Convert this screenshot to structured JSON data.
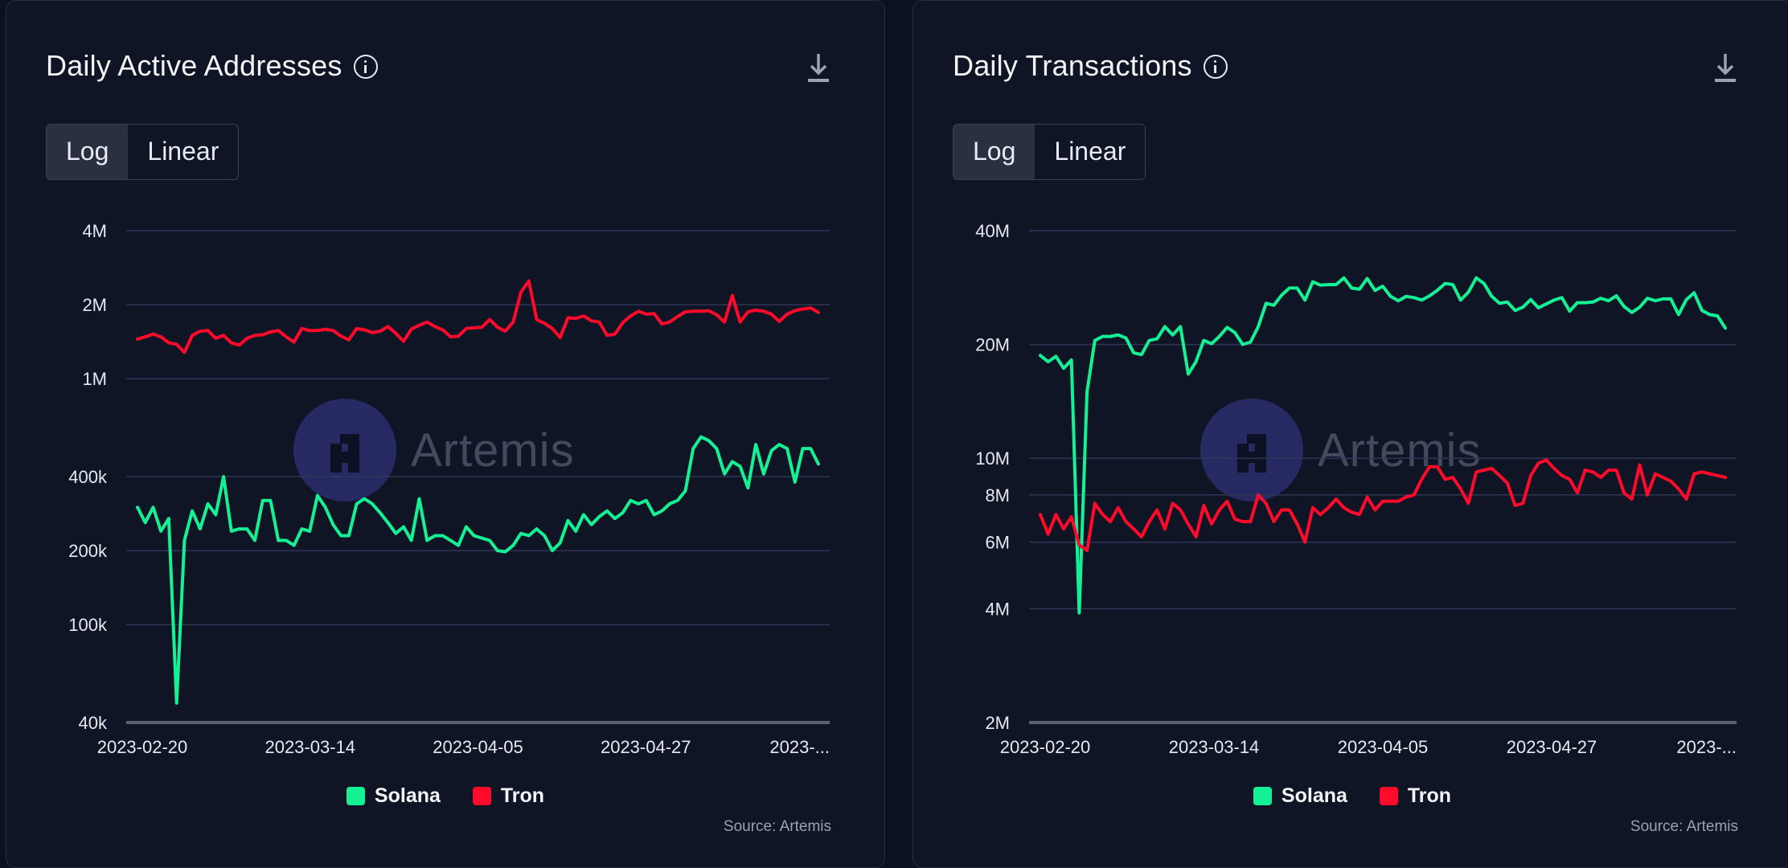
{
  "colors": {
    "solana": "#14f195",
    "tron": "#ff0a2a",
    "grid": "#2e3656",
    "baseline": "#5a6070"
  },
  "watermark": "Artemis",
  "chart_data": [
    {
      "type": "line",
      "title": "Daily Active Addresses",
      "yscale": "log",
      "toggle": [
        "Log",
        "Linear"
      ],
      "active_toggle": "Log",
      "ylim": [
        40000,
        4000000
      ],
      "y_ticks": [
        {
          "v": 4000000,
          "label": "4M"
        },
        {
          "v": 2000000,
          "label": "2M"
        },
        {
          "v": 1000000,
          "label": "1M"
        },
        {
          "v": 400000,
          "label": "400k"
        },
        {
          "v": 200000,
          "label": "200k"
        },
        {
          "v": 100000,
          "label": "100k"
        },
        {
          "v": 40000,
          "label": "40k"
        }
      ],
      "x_ticks": [
        "2023-02-20",
        "2023-03-14",
        "2023-04-05",
        "2023-04-27",
        "2023-..."
      ],
      "x_start": "2023-02-20",
      "legend": "bottom-center",
      "source": "Source: Artemis",
      "series": [
        {
          "name": "Solana",
          "values": [
            300000,
            260000,
            300000,
            240000,
            270000,
            48000,
            220000,
            290000,
            245000,
            310000,
            280000,
            400000,
            240000,
            245000,
            245000,
            220000,
            320000,
            320000,
            220000,
            220000,
            210000,
            245000,
            240000,
            335000,
            300000,
            255000,
            230000,
            230000,
            310000,
            325000,
            310000,
            285000,
            260000,
            235000,
            250000,
            220000,
            325000,
            220000,
            230000,
            230000,
            220000,
            210000,
            250000,
            230000,
            225000,
            220000,
            200000,
            198000,
            210000,
            235000,
            230000,
            245000,
            230000,
            200000,
            215000,
            265000,
            240000,
            280000,
            255000,
            275000,
            290000,
            270000,
            285000,
            320000,
            310000,
            320000,
            280000,
            290000,
            310000,
            320000,
            350000,
            520000,
            580000,
            560000,
            520000,
            410000,
            460000,
            440000,
            360000,
            540000,
            410000,
            510000,
            540000,
            520000,
            380000,
            520000,
            520000,
            450000
          ]
        },
        {
          "name": "Tron",
          "values": [
            1450000,
            1480000,
            1520000,
            1480000,
            1400000,
            1380000,
            1280000,
            1500000,
            1560000,
            1570000,
            1460000,
            1500000,
            1400000,
            1370000,
            1460000,
            1500000,
            1510000,
            1550000,
            1570000,
            1480000,
            1410000,
            1600000,
            1570000,
            1570000,
            1590000,
            1570000,
            1490000,
            1440000,
            1600000,
            1580000,
            1540000,
            1560000,
            1630000,
            1530000,
            1420000,
            1590000,
            1650000,
            1700000,
            1630000,
            1580000,
            1480000,
            1490000,
            1600000,
            1610000,
            1620000,
            1740000,
            1620000,
            1560000,
            1700000,
            2250000,
            2500000,
            1740000,
            1680000,
            1600000,
            1470000,
            1770000,
            1760000,
            1800000,
            1720000,
            1700000,
            1500000,
            1520000,
            1690000,
            1800000,
            1880000,
            1830000,
            1840000,
            1670000,
            1700000,
            1790000,
            1870000,
            1880000,
            1880000,
            1890000,
            1820000,
            1700000,
            2180000,
            1700000,
            1870000,
            1900000,
            1880000,
            1830000,
            1710000,
            1830000,
            1890000,
            1920000,
            1940000,
            1860000
          ]
        }
      ]
    },
    {
      "type": "line",
      "title": "Daily Transactions",
      "yscale": "log",
      "toggle": [
        "Log",
        "Linear"
      ],
      "active_toggle": "Log",
      "ylim": [
        2000000,
        40000000
      ],
      "y_ticks": [
        {
          "v": 40000000,
          "label": "40M"
        },
        {
          "v": 20000000,
          "label": "20M"
        },
        {
          "v": 10000000,
          "label": "10M"
        },
        {
          "v": 8000000,
          "label": "8M"
        },
        {
          "v": 6000000,
          "label": "6M"
        },
        {
          "v": 4000000,
          "label": "4M"
        },
        {
          "v": 2000000,
          "label": "2M"
        }
      ],
      "x_ticks": [
        "2023-02-20",
        "2023-03-14",
        "2023-04-05",
        "2023-04-27",
        "2023-..."
      ],
      "x_start": "2023-02-20",
      "legend": "bottom-center",
      "source": "Source: Artemis",
      "series": [
        {
          "name": "Solana",
          "values": [
            18700000,
            18000000,
            18600000,
            17300000,
            18200000,
            3900000,
            15000000,
            20500000,
            21000000,
            21000000,
            21200000,
            20800000,
            19000000,
            18800000,
            20500000,
            20700000,
            22300000,
            21200000,
            22300000,
            16700000,
            18000000,
            20500000,
            20100000,
            21000000,
            22200000,
            21500000,
            20000000,
            20300000,
            22300000,
            25700000,
            25400000,
            27000000,
            28200000,
            28200000,
            26200000,
            29300000,
            28700000,
            28800000,
            28800000,
            30000000,
            28200000,
            28000000,
            29900000,
            27800000,
            28500000,
            26800000,
            26100000,
            26800000,
            26600000,
            26200000,
            26900000,
            27800000,
            29000000,
            28800000,
            26200000,
            27500000,
            30000000,
            29000000,
            26800000,
            25700000,
            25900000,
            24600000,
            25100000,
            26300000,
            25000000,
            25600000,
            26200000,
            26600000,
            24500000,
            25800000,
            25800000,
            25900000,
            26500000,
            26100000,
            26900000,
            25200000,
            24300000,
            25100000,
            26500000,
            26100000,
            26400000,
            26400000,
            24000000,
            26300000,
            27400000,
            24600000,
            24000000,
            23800000,
            22100000
          ]
        },
        {
          "name": "Tron",
          "values": [
            7100000,
            6300000,
            7100000,
            6500000,
            7000000,
            5900000,
            5700000,
            7600000,
            7100000,
            6800000,
            7400000,
            6800000,
            6500000,
            6200000,
            6800000,
            7300000,
            6500000,
            7600000,
            7300000,
            6700000,
            6200000,
            7500000,
            6700000,
            7300000,
            7700000,
            6900000,
            6800000,
            6800000,
            8000000,
            7600000,
            6800000,
            7300000,
            7300000,
            6700000,
            6000000,
            7400000,
            7100000,
            7400000,
            7800000,
            7400000,
            7200000,
            7100000,
            7900000,
            7300000,
            7700000,
            7700000,
            7700000,
            7900000,
            8000000,
            8800000,
            9500000,
            9500000,
            8800000,
            8900000,
            8300000,
            7600000,
            9200000,
            9300000,
            9400000,
            9000000,
            8600000,
            7500000,
            7600000,
            9000000,
            9700000,
            9900000,
            9400000,
            9000000,
            8800000,
            8100000,
            9300000,
            9200000,
            8900000,
            9300000,
            9300000,
            8100000,
            7800000,
            9600000,
            8000000,
            9100000,
            8900000,
            8700000,
            8300000,
            7800000,
            9100000,
            9200000,
            9100000,
            9000000,
            8900000
          ]
        }
      ]
    }
  ]
}
